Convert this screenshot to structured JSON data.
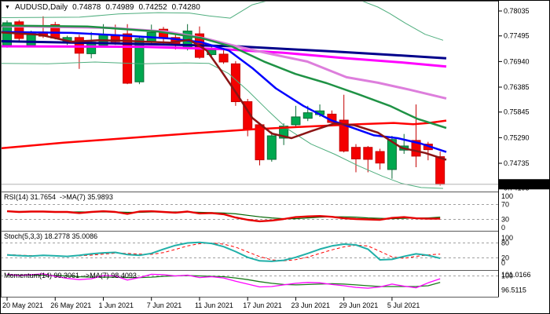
{
  "header": {
    "menu_icon": "▼",
    "symbol_period": "AUDUSD,Daily",
    "open": "0.74878",
    "high": "0.74989",
    "low": "0.74252",
    "close": "0.74280"
  },
  "price_axis": {
    "labels": [
      "0.78035",
      "0.77495",
      "0.76940",
      "0.76385",
      "0.75845",
      "0.75290",
      "0.74735"
    ],
    "partial_label": "0.74195",
    "current_price": "0.74280",
    "current_price_box_bg": "#000000",
    "current_price_box_fg": "#ffffff"
  },
  "time_axis": {
    "labels": [
      "20 May 2021",
      "26 May 2021",
      "1 Jun 2021",
      "7 Jun 2021",
      "11 Jun 2021",
      "17 Jun 2021",
      "23 Jun 2021",
      "29 Jun 2021",
      "5 Jul 2021"
    ],
    "tick_indices": [
      0,
      4,
      8,
      12,
      16,
      20,
      24,
      28,
      32
    ]
  },
  "panels": {
    "rsi": {
      "label": "RSI(14) 31.7654  ->MA(7) 35.9893",
      "levels": [
        70,
        30
      ],
      "axis_labels": [
        "100",
        "70",
        "30",
        "0"
      ]
    },
    "stoch": {
      "label": "Stoch(5,3,3) 18.2778 35.0086",
      "levels": [
        80,
        20
      ],
      "axis_labels": [
        "100",
        "80",
        "20",
        "0"
      ]
    },
    "momentum": {
      "label": "Momentum(14) 99.3061  ->MA(7) 98.4093",
      "levels": [
        100
      ],
      "axis_labels": [
        "101.0166",
        "100",
        "96.5115"
      ]
    }
  },
  "colors": {
    "background": "#ffffff",
    "border": "#5a5a5a",
    "level_dash": "#a0a0a0",
    "bull_fill": "#00a84f",
    "bull_edge": "#0b6b35",
    "bear_fill": "#f40000",
    "bear_edge": "#c40000",
    "current_price_line": "#b4b4b4",
    "rsi_main": "#e60000",
    "rsi_ma": "#006400",
    "stoch_main": "#20aFA8",
    "stoch_signal": "#ff0000",
    "mom_main": "#ff00ff",
    "mom_ma": "#1b7a1b"
  },
  "chart_data": {
    "type": "candlestick+indicators",
    "symbol": "AUDUSD",
    "timeframe": "Daily",
    "price_range_visible": [
      0.74195,
      0.78035
    ],
    "candles": [
      {
        "date": "20 May 2021",
        "o": 0.7729,
        "h": 0.7783,
        "l": 0.7724,
        "c": 0.7778
      },
      {
        "date": "21 May 2021",
        "o": 0.778,
        "h": 0.7784,
        "l": 0.7738,
        "c": 0.7744
      },
      {
        "date": "24 May 2021",
        "o": 0.7729,
        "h": 0.7761,
        "l": 0.7725,
        "c": 0.7758
      },
      {
        "date": "25 May 2021",
        "o": 0.7758,
        "h": 0.7792,
        "l": 0.7745,
        "c": 0.7749
      },
      {
        "date": "26 May 2021",
        "o": 0.7774,
        "h": 0.778,
        "l": 0.7742,
        "c": 0.7745
      },
      {
        "date": "27 May 2021",
        "o": 0.7736,
        "h": 0.775,
        "l": 0.773,
        "c": 0.7746
      },
      {
        "date": "28 May 2021",
        "o": 0.7746,
        "h": 0.7752,
        "l": 0.7678,
        "c": 0.7712
      },
      {
        "date": "31 May 2021",
        "o": 0.7711,
        "h": 0.7758,
        "l": 0.7701,
        "c": 0.7736
      },
      {
        "date": "1 Jun 2021",
        "o": 0.7729,
        "h": 0.7775,
        "l": 0.7725,
        "c": 0.7752
      },
      {
        "date": "2 Jun 2021",
        "o": 0.7749,
        "h": 0.7774,
        "l": 0.773,
        "c": 0.7737
      },
      {
        "date": "3 Jun 2021",
        "o": 0.7754,
        "h": 0.7775,
        "l": 0.7645,
        "c": 0.7647
      },
      {
        "date": "4 Jun 2021",
        "o": 0.765,
        "h": 0.775,
        "l": 0.7645,
        "c": 0.7744
      },
      {
        "date": "7 Jun 2021",
        "o": 0.7737,
        "h": 0.7774,
        "l": 0.773,
        "c": 0.7757
      },
      {
        "date": "8 Jun 2021",
        "o": 0.7764,
        "h": 0.7769,
        "l": 0.7732,
        "c": 0.7744
      },
      {
        "date": "9 Jun 2021",
        "o": 0.7746,
        "h": 0.7756,
        "l": 0.772,
        "c": 0.7732
      },
      {
        "date": "10 Jun 2021",
        "o": 0.7723,
        "h": 0.7775,
        "l": 0.7718,
        "c": 0.776
      },
      {
        "date": "11 Jun 2021",
        "o": 0.7754,
        "h": 0.777,
        "l": 0.77,
        "c": 0.7703
      },
      {
        "date": "14 Jun 2021",
        "o": 0.7709,
        "h": 0.7728,
        "l": 0.7705,
        "c": 0.7719
      },
      {
        "date": "15 Jun 2021",
        "o": 0.771,
        "h": 0.772,
        "l": 0.7689,
        "c": 0.7693
      },
      {
        "date": "16 Jun 2021",
        "o": 0.7689,
        "h": 0.7695,
        "l": 0.7598,
        "c": 0.7607
      },
      {
        "date": "17 Jun 2021",
        "o": 0.7607,
        "h": 0.7613,
        "l": 0.7532,
        "c": 0.7548
      },
      {
        "date": "18 Jun 2021",
        "o": 0.7557,
        "h": 0.756,
        "l": 0.7469,
        "c": 0.7481
      },
      {
        "date": "21 Jun 2021",
        "o": 0.7482,
        "h": 0.7542,
        "l": 0.7477,
        "c": 0.7533
      },
      {
        "date": "22 Jun 2021",
        "o": 0.7528,
        "h": 0.756,
        "l": 0.7513,
        "c": 0.7554
      },
      {
        "date": "23 Jun 2021",
        "o": 0.7557,
        "h": 0.7598,
        "l": 0.7552,
        "c": 0.7574
      },
      {
        "date": "24 Jun 2021",
        "o": 0.7571,
        "h": 0.7598,
        "l": 0.7565,
        "c": 0.7583
      },
      {
        "date": "25 Jun 2021",
        "o": 0.7579,
        "h": 0.7601,
        "l": 0.7574,
        "c": 0.7587
      },
      {
        "date": "28 Jun 2021",
        "o": 0.758,
        "h": 0.7588,
        "l": 0.7556,
        "c": 0.7562
      },
      {
        "date": "29 Jun 2021",
        "o": 0.7567,
        "h": 0.7622,
        "l": 0.7497,
        "c": 0.75
      },
      {
        "date": "30 Jun 2021",
        "o": 0.7508,
        "h": 0.7515,
        "l": 0.7454,
        "c": 0.7483
      },
      {
        "date": "1 Jul 2021",
        "o": 0.7508,
        "h": 0.7511,
        "l": 0.7454,
        "c": 0.7482
      },
      {
        "date": "2 Jul 2021",
        "o": 0.7499,
        "h": 0.7505,
        "l": 0.746,
        "c": 0.7474
      },
      {
        "date": "5 Jul 2021",
        "o": 0.746,
        "h": 0.7533,
        "l": 0.744,
        "c": 0.7525
      },
      {
        "date": "6 Jul 2021",
        "o": 0.7502,
        "h": 0.7537,
        "l": 0.7494,
        "c": 0.7511
      },
      {
        "date": "7 Jul 2021",
        "o": 0.7523,
        "h": 0.7601,
        "l": 0.7465,
        "c": 0.7489
      },
      {
        "date": "8 Jul 2021",
        "o": 0.7515,
        "h": 0.752,
        "l": 0.748,
        "c": 0.7503
      },
      {
        "date": "9 Jul 2021",
        "o": 0.74878,
        "h": 0.74989,
        "l": 0.74252,
        "c": 0.7428
      }
    ],
    "overlays": [
      {
        "name": "band-upper",
        "color": "#4fae7e",
        "width": 1,
        "points": [
          [
            0,
            0.7789
          ],
          [
            100,
            0.779
          ],
          [
            150,
            0.7797
          ],
          [
            200,
            0.78
          ],
          [
            240,
            0.7799
          ],
          [
            265,
            0.7793
          ],
          [
            292,
            0.7788
          ],
          [
            320,
            0.7817
          ],
          [
            360,
            0.7835
          ],
          [
            440,
            0.7838
          ],
          [
            480,
            0.7812
          ],
          [
            495,
            0.7798
          ],
          [
            515,
            0.7777
          ],
          [
            540,
            0.7753
          ],
          [
            563,
            0.774
          ]
        ]
      },
      {
        "name": "band-lower",
        "color": "#4fae7e",
        "width": 1,
        "points": [
          [
            0,
            0.769
          ],
          [
            60,
            0.7689
          ],
          [
            120,
            0.7693
          ],
          [
            180,
            0.7689
          ],
          [
            235,
            0.7691
          ],
          [
            265,
            0.769
          ],
          [
            290,
            0.7668
          ],
          [
            315,
            0.763
          ],
          [
            340,
            0.7588
          ],
          [
            365,
            0.7548
          ],
          [
            395,
            0.7515
          ],
          [
            425,
            0.7493
          ],
          [
            455,
            0.7468
          ],
          [
            485,
            0.7446
          ],
          [
            510,
            0.743
          ],
          [
            535,
            0.7421
          ],
          [
            563,
            0.7419
          ]
        ]
      },
      {
        "name": "ma-slow-red",
        "color": "#ff0000",
        "width": 2.5,
        "points": [
          [
            0,
            0.7506
          ],
          [
            80,
            0.7518
          ],
          [
            160,
            0.7528
          ],
          [
            240,
            0.7538
          ],
          [
            320,
            0.7547
          ],
          [
            400,
            0.7554
          ],
          [
            455,
            0.7558
          ],
          [
            500,
            0.7561
          ],
          [
            525,
            0.7558
          ],
          [
            545,
            0.7561
          ],
          [
            567,
            0.7566
          ]
        ]
      },
      {
        "name": "ma-navy",
        "color": "#00008b",
        "width": 3,
        "points": [
          [
            0,
            0.7738
          ],
          [
            150,
            0.7733
          ],
          [
            300,
            0.7727
          ],
          [
            420,
            0.7716
          ],
          [
            500,
            0.7708
          ],
          [
            567,
            0.7701
          ]
        ]
      },
      {
        "name": "ma-magenta",
        "color": "#ff00ff",
        "width": 3,
        "points": [
          [
            0,
            0.7727
          ],
          [
            180,
            0.7726
          ],
          [
            280,
            0.7721
          ],
          [
            360,
            0.7713
          ],
          [
            440,
            0.7701
          ],
          [
            510,
            0.7692
          ],
          [
            567,
            0.7683
          ]
        ]
      },
      {
        "name": "ma-plum",
        "color": "#dd7edc",
        "width": 3,
        "points": [
          [
            0,
            0.7771
          ],
          [
            140,
            0.7767
          ],
          [
            210,
            0.7759
          ],
          [
            260,
            0.7744
          ],
          [
            300,
            0.7727
          ],
          [
            345,
            0.771
          ],
          [
            390,
            0.7694
          ],
          [
            440,
            0.766
          ],
          [
            480,
            0.7648
          ],
          [
            520,
            0.7633
          ],
          [
            567,
            0.7614
          ]
        ]
      },
      {
        "name": "ma-green",
        "color": "#1f9245",
        "width": 2.5,
        "points": [
          [
            0,
            0.7772
          ],
          [
            110,
            0.777
          ],
          [
            200,
            0.7759
          ],
          [
            255,
            0.7745
          ],
          [
            295,
            0.7726
          ],
          [
            335,
            0.7694
          ],
          [
            375,
            0.7667
          ],
          [
            415,
            0.7647
          ],
          [
            455,
            0.7623
          ],
          [
            495,
            0.7598
          ],
          [
            530,
            0.757
          ],
          [
            567,
            0.755
          ]
        ]
      },
      {
        "name": "ma-blue",
        "color": "#0000ff",
        "width": 2.5,
        "points": [
          [
            0,
            0.7758
          ],
          [
            90,
            0.7756
          ],
          [
            160,
            0.775
          ],
          [
            215,
            0.7744
          ],
          [
            255,
            0.7736
          ],
          [
            290,
            0.7718
          ],
          [
            320,
            0.768
          ],
          [
            350,
            0.7636
          ],
          [
            385,
            0.7598
          ],
          [
            420,
            0.7567
          ],
          [
            450,
            0.7549
          ],
          [
            475,
            0.7534
          ],
          [
            505,
            0.7528
          ],
          [
            535,
            0.7516
          ],
          [
            567,
            0.7498
          ]
        ]
      },
      {
        "name": "ma-maroon",
        "color": "#8b1515",
        "width": 2.5,
        "points": [
          [
            0,
            0.7757
          ],
          [
            50,
            0.7752
          ],
          [
            90,
            0.7737
          ],
          [
            125,
            0.774
          ],
          [
            155,
            0.7739
          ],
          [
            185,
            0.7737
          ],
          [
            215,
            0.7735
          ],
          [
            240,
            0.7741
          ],
          [
            262,
            0.7718
          ],
          [
            280,
            0.7675
          ],
          [
            300,
            0.7625
          ],
          [
            320,
            0.7572
          ],
          [
            345,
            0.7538
          ],
          [
            370,
            0.7528
          ],
          [
            395,
            0.7543
          ],
          [
            425,
            0.756
          ],
          [
            450,
            0.7556
          ],
          [
            480,
            0.754
          ],
          [
            510,
            0.7507
          ],
          [
            540,
            0.7496
          ],
          [
            567,
            0.7481
          ]
        ]
      }
    ],
    "rsi": {
      "main": [
        52,
        50,
        51,
        51,
        50,
        50,
        47,
        50,
        52,
        50,
        45,
        51,
        52,
        50,
        48,
        51,
        46,
        47,
        44,
        35,
        29,
        25,
        27,
        31,
        36,
        38,
        39,
        37,
        33,
        31,
        30,
        29,
        34,
        36,
        33,
        32,
        31.8
      ],
      "ma": [
        51,
        51,
        51,
        51,
        50,
        50,
        50,
        50,
        50,
        50,
        49,
        49,
        50,
        50,
        50,
        50,
        49,
        48,
        47,
        45,
        41,
        37,
        34,
        32,
        32,
        34,
        36,
        37,
        37,
        36,
        34,
        33,
        32,
        33,
        34,
        34,
        36
      ]
    },
    "stoch": {
      "main": [
        32,
        29,
        27,
        30,
        28,
        26,
        30,
        36,
        40,
        42,
        33,
        30,
        38,
        55,
        70,
        80,
        82,
        78,
        65,
        45,
        22,
        8,
        6,
        10,
        22,
        38,
        55,
        68,
        75,
        72,
        55,
        12,
        14,
        26,
        36,
        30,
        18.3
      ],
      "signal": [
        33,
        31,
        29,
        29,
        28,
        27,
        28,
        31,
        35,
        39,
        38,
        35,
        34,
        41,
        54,
        68,
        77,
        80,
        75,
        63,
        44,
        25,
        12,
        8,
        13,
        23,
        38,
        52,
        64,
        71,
        68,
        46,
        24,
        18,
        26,
        32,
        35
      ]
    },
    "momentum": {
      "main": [
        100.4,
        100.1,
        100.3,
        100.5,
        99.9,
        99.4,
        99.1,
        99.3,
        100.1,
        100.0,
        99.0,
        99.6,
        100.4,
        100.3,
        100.0,
        100.2,
        99.6,
        99.8,
        99.5,
        98.7,
        98.0,
        97.3,
        97.4,
        97.8,
        98.2,
        98.4,
        98.3,
        97.9,
        97.6,
        97.2,
        97.0,
        97.3,
        98.0,
        97.5,
        97.1,
        98.3,
        99.31
      ],
      "ma": [
        100.2,
        100.2,
        100.2,
        100.2,
        100.1,
        100.0,
        99.8,
        99.7,
        99.7,
        99.7,
        99.6,
        99.6,
        99.7,
        99.9,
        100.0,
        100.1,
        100.0,
        99.9,
        99.8,
        99.5,
        99.1,
        98.6,
        98.2,
        97.9,
        97.8,
        97.9,
        98.0,
        98.1,
        98.0,
        97.8,
        97.6,
        97.4,
        97.4,
        97.4,
        97.4,
        97.6,
        98.41
      ]
    }
  }
}
